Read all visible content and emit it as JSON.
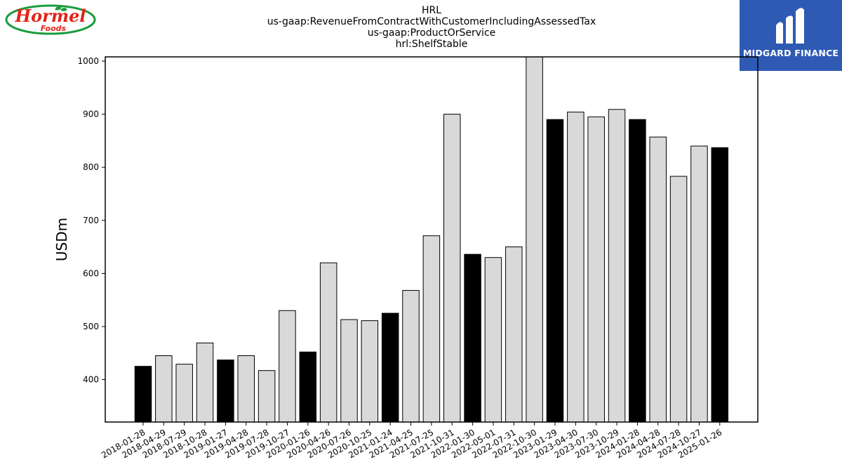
{
  "title_lines": [
    "HRL",
    "us-gaap:RevenueFromContractWithCustomerIncludingAssessedTax",
    "us-gaap:ProductOrService",
    "hrl:ShelfStable"
  ],
  "logos": {
    "left": {
      "text": "Hormel",
      "subtext": "Foods",
      "colors": {
        "red": "#e2231a",
        "green": "#1a9c3e"
      }
    },
    "right": {
      "text": "MIDGARD FINANCE",
      "colors": {
        "background": "#2f5ab4",
        "foreground": "#ffffff"
      }
    }
  },
  "chart_data": {
    "type": "bar",
    "title": "HRL\nus-gaap:RevenueFromContractWithCustomerIncludingAssessedTax\nus-gaap:ProductOrService\nhrl:ShelfStable",
    "xlabel": "",
    "ylabel": "USDm",
    "ylim": [
      320,
      1008
    ],
    "yticks": [
      400,
      500,
      600,
      700,
      800,
      900,
      1000
    ],
    "grid": false,
    "colors": {
      "q1": "#000000",
      "other": "#d9d9d9",
      "edge": "#000000"
    },
    "categories": [
      "2018-01-28",
      "2018-04-29",
      "2018-07-29",
      "2018-10-28",
      "2019-01-27",
      "2019-04-28",
      "2019-07-28",
      "2019-10-27",
      "2020-01-26",
      "2020-04-26",
      "2020-07-26",
      "2020-10-25",
      "2021-01-24",
      "2021-04-25",
      "2021-07-25",
      "2021-10-31",
      "2022-01-30",
      "2022-05-01",
      "2022-07-31",
      "2022-10-30",
      "2023-01-29",
      "2023-04-30",
      "2023-07-30",
      "2023-10-29",
      "2024-01-28",
      "2024-04-28",
      "2024-07-28",
      "2024-10-27",
      "2025-01-26"
    ],
    "values": [
      425,
      445,
      429,
      469,
      437,
      445,
      417,
      530,
      452,
      620,
      513,
      511,
      525,
      568,
      671,
      900,
      636,
      630,
      650,
      1010,
      890,
      904,
      895,
      909,
      890,
      857,
      783,
      840,
      837
    ],
    "highlight": [
      true,
      false,
      false,
      false,
      true,
      false,
      false,
      false,
      true,
      false,
      false,
      false,
      true,
      false,
      false,
      false,
      true,
      false,
      false,
      false,
      true,
      false,
      false,
      false,
      true,
      false,
      false,
      false,
      true
    ]
  }
}
